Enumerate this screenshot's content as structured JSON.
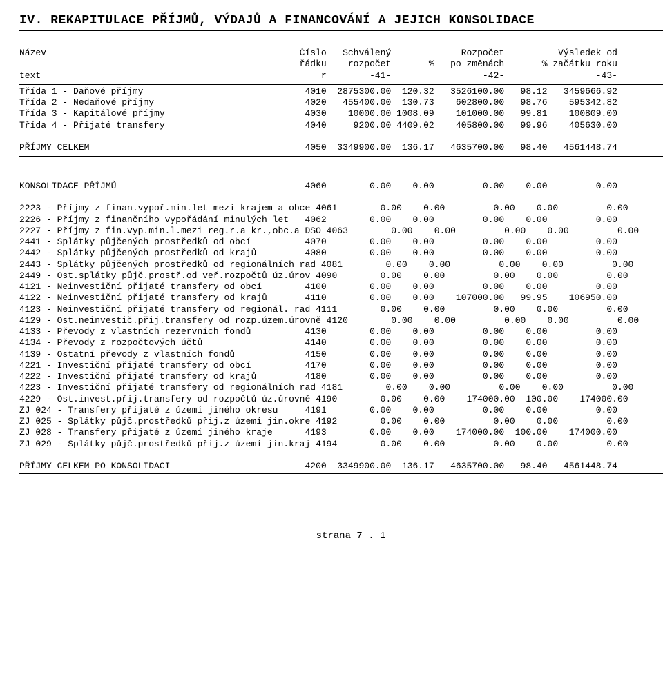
{
  "title": "IV. REKAPITULACE PŘÍJMŮ, VÝDAJŮ A FINANCOVÁNÍ A JEJICH KONSOLIDACE",
  "headers": {
    "row1": {
      "name": "Název",
      "cislo": "Číslo",
      "schvaleny": "Schválený",
      "pct1": "",
      "rozpocet": "Rozpočet",
      "pct2": "",
      "vysledek": "Výsledek od"
    },
    "row2": {
      "name": "",
      "cislo": "řádku",
      "schvaleny": "rozpočet",
      "pct1": "%",
      "rozpocet": "po změnách",
      "pct2": "%",
      "vysledek": "začátku roku"
    },
    "row3": {
      "name": "text",
      "cislo": "r",
      "schvaleny": "-41-",
      "pct1": "",
      "rozpocet": "-42-",
      "pct2": "",
      "vysledek": "-43-"
    }
  },
  "section1": [
    {
      "label": "Třída 1 - Daňové příjmy",
      "r": "4010",
      "c41": "2875300.00",
      "p1": "120.32",
      "c42": "3526100.00",
      "p2": "98.12",
      "c43": "3459666.92"
    },
    {
      "label": "Třída 2 - Nedaňové příjmy",
      "r": "4020",
      "c41": "455400.00",
      "p1": "130.73",
      "c42": "602800.00",
      "p2": "98.76",
      "c43": "595342.82"
    },
    {
      "label": "Třída 3 - Kapitálové příjmy",
      "r": "4030",
      "c41": "10000.00",
      "p1": "1008.09",
      "c42": "101000.00",
      "p2": "99.81",
      "c43": "100809.00"
    },
    {
      "label": "Třída 4 - Přijaté transfery",
      "r": "4040",
      "c41": "9200.00",
      "p1": "4409.02",
      "c42": "405800.00",
      "p2": "99.96",
      "c43": "405630.00"
    }
  ],
  "section1_total": {
    "label": "PŘÍJMY CELKEM",
    "r": "4050",
    "c41": "3349900.00",
    "p1": "136.17",
    "c42": "4635700.00",
    "p2": "98.40",
    "c43": "4561448.74"
  },
  "section2_header": {
    "label": "KONSOLIDACE PŘÍJMŮ",
    "r": "4060",
    "c41": "0.00",
    "p1": "0.00",
    "c42": "0.00",
    "p2": "0.00",
    "c43": "0.00"
  },
  "section2": [
    {
      "label": "2223 - Příjmy z finan.vypoř.min.let mezi krajem a obce",
      "r": "4061",
      "c41": "0.00",
      "p1": "0.00",
      "c42": "0.00",
      "p2": "0.00",
      "c43": "0.00"
    },
    {
      "label": "2226 - Příjmy z finančního vypořádání minulých let",
      "r": "4062",
      "c41": "0.00",
      "p1": "0.00",
      "c42": "0.00",
      "p2": "0.00",
      "c43": "0.00"
    },
    {
      "label": "2227 - Příjmy z fin.vyp.min.l.mezi reg.r.a kr.,obc.a DSO",
      "r": "4063",
      "c41": "0.00",
      "p1": "0.00",
      "c42": "0.00",
      "p2": "0.00",
      "c43": "0.00"
    },
    {
      "label": "2441 - Splátky půjčených prostředků od obcí",
      "r": "4070",
      "c41": "0.00",
      "p1": "0.00",
      "c42": "0.00",
      "p2": "0.00",
      "c43": "0.00"
    },
    {
      "label": "2442 - Splátky půjčených prostředků od krajů",
      "r": "4080",
      "c41": "0.00",
      "p1": "0.00",
      "c42": "0.00",
      "p2": "0.00",
      "c43": "0.00"
    },
    {
      "label": "2443 - Splátky půjčených prostředků od regionálních rad",
      "r": "4081",
      "c41": "0.00",
      "p1": "0.00",
      "c42": "0.00",
      "p2": "0.00",
      "c43": "0.00"
    },
    {
      "label": "2449 - Ost.splátky půjč.prostř.od veř.rozpočtů úz.úrov",
      "r": "4090",
      "c41": "0.00",
      "p1": "0.00",
      "c42": "0.00",
      "p2": "0.00",
      "c43": "0.00"
    },
    {
      "label": "4121 - Neinvestiční přijaté transfery od obcí",
      "r": "4100",
      "c41": "0.00",
      "p1": "0.00",
      "c42": "0.00",
      "p2": "0.00",
      "c43": "0.00"
    },
    {
      "label": "4122 - Neinvestiční přijaté transfery od krajů",
      "r": "4110",
      "c41": "0.00",
      "p1": "0.00",
      "c42": "107000.00",
      "p2": "99.95",
      "c43": "106950.00"
    },
    {
      "label": "4123 - Neinvestiční přijaté transfery od regionál. rad",
      "r": "4111",
      "c41": "0.00",
      "p1": "0.00",
      "c42": "0.00",
      "p2": "0.00",
      "c43": "0.00"
    },
    {
      "label": "4129 - Ost.neinvestič.přij.transfery od rozp.územ.úrovně",
      "r": "4120",
      "c41": "0.00",
      "p1": "0.00",
      "c42": "0.00",
      "p2": "0.00",
      "c43": "0.00"
    },
    {
      "label": "4133 - Převody z vlastních rezervních fondů",
      "r": "4130",
      "c41": "0.00",
      "p1": "0.00",
      "c42": "0.00",
      "p2": "0.00",
      "c43": "0.00"
    },
    {
      "label": "4134 - Převody z rozpočtových účtů",
      "r": "4140",
      "c41": "0.00",
      "p1": "0.00",
      "c42": "0.00",
      "p2": "0.00",
      "c43": "0.00"
    },
    {
      "label": "4139 - Ostatní převody z vlastních fondů",
      "r": "4150",
      "c41": "0.00",
      "p1": "0.00",
      "c42": "0.00",
      "p2": "0.00",
      "c43": "0.00"
    },
    {
      "label": "4221 - Investiční přijaté transfery od obcí",
      "r": "4170",
      "c41": "0.00",
      "p1": "0.00",
      "c42": "0.00",
      "p2": "0.00",
      "c43": "0.00"
    },
    {
      "label": "4222 - Investiční přijaté transfery od krajů",
      "r": "4180",
      "c41": "0.00",
      "p1": "0.00",
      "c42": "0.00",
      "p2": "0.00",
      "c43": "0.00"
    },
    {
      "label": "4223 - Investiční přijaté transfery od regionálních rad",
      "r": "4181",
      "c41": "0.00",
      "p1": "0.00",
      "c42": "0.00",
      "p2": "0.00",
      "c43": "0.00"
    },
    {
      "label": "4229 - Ost.invest.přij.transfery od rozpočtů úz.úrovně",
      "r": "4190",
      "c41": "0.00",
      "p1": "0.00",
      "c42": "174000.00",
      "p2": "100.00",
      "c43": "174000.00"
    },
    {
      "label": "ZJ 024 - Transfery přijaté z území jiného okresu",
      "r": "4191",
      "c41": "0.00",
      "p1": "0.00",
      "c42": "0.00",
      "p2": "0.00",
      "c43": "0.00"
    },
    {
      "label": "ZJ 025 - Splátky půjč.prostředků přij.z území jin.okre",
      "r": "4192",
      "c41": "0.00",
      "p1": "0.00",
      "c42": "0.00",
      "p2": "0.00",
      "c43": "0.00"
    },
    {
      "label": "ZJ 028 - Transfery přijaté z území jiného kraje",
      "r": "4193",
      "c41": "0.00",
      "p1": "0.00",
      "c42": "174000.00",
      "p2": "100.00",
      "c43": "174000.00"
    },
    {
      "label": "ZJ 029 - Splátky půjč.prostředků přij.z území jin.kraj",
      "r": "4194",
      "c41": "0.00",
      "p1": "0.00",
      "c42": "0.00",
      "p2": "0.00",
      "c43": "0.00"
    }
  ],
  "section2_total": {
    "label": "PŘÍJMY CELKEM PO KONSOLIDACI",
    "r": "4200",
    "c41": "3349900.00",
    "p1": "136.17",
    "c42": "4635700.00",
    "p2": "98.40",
    "c43": "4561448.74"
  },
  "footer": "strana 7 . 1",
  "widths": {
    "label": 52,
    "r": 5,
    "c41": 12,
    "p1": 8,
    "c42": 13,
    "p2": 8,
    "c43": 13
  }
}
